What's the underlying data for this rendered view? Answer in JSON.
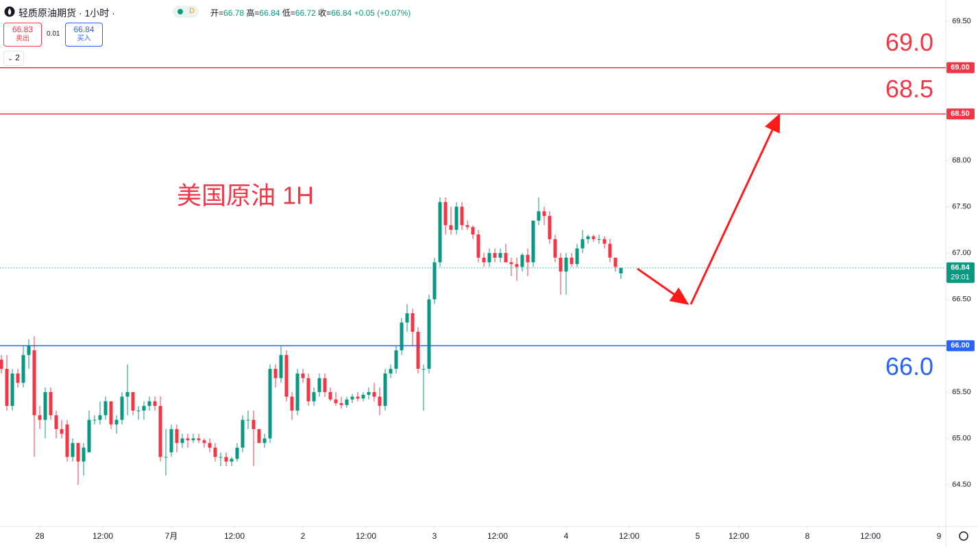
{
  "header": {
    "title": "轻质原油期货 · 1小时 ·",
    "badge": "D",
    "open_label": "开=",
    "open": "66.78",
    "high_label": "高=",
    "high": "66.84",
    "low_label": "低=",
    "low": "66.72",
    "close_label": "收=",
    "close": "66.84",
    "change": "+0.05 (+0.07%)",
    "bid": "66.83",
    "bid_label": "卖出",
    "spread": "0.01",
    "ask": "66.84",
    "ask_label": "买入",
    "layers": "2"
  },
  "chart_data": {
    "type": "candlestick",
    "up_color": "#089981",
    "down_color": "#f23645",
    "annotation": "美国原油 1H",
    "open": [
      65.85,
      65.75,
      65.35,
      65.7,
      65.6,
      65.9,
      65.95,
      65.25,
      65.2,
      65.5,
      65.25,
      65.1,
      65.15,
      64.8,
      64.95,
      64.75,
      64.85,
      65.2,
      65.2,
      65.25,
      65.4,
      65.15,
      65.2,
      65.45,
      65.5,
      65.3,
      65.3,
      65.35,
      65.4,
      65.35,
      64.8,
      64.85,
      65.1,
      64.95,
      65.0,
      64.98,
      65.0,
      64.98,
      64.95,
      64.9,
      64.8,
      64.8,
      64.75,
      64.78,
      64.9,
      65.2,
      65.2,
      65.1,
      64.95,
      65.0,
      65.75,
      65.65,
      65.9,
      65.45,
      65.3,
      65.7,
      65.65,
      65.4,
      65.5,
      65.65,
      65.5,
      65.42,
      65.38,
      65.36,
      65.42,
      65.45,
      65.43,
      65.47,
      65.5,
      65.45,
      65.35,
      65.7,
      65.75,
      65.95,
      66.25,
      66.35,
      66.15,
      65.75,
      65.75,
      66.5,
      66.9,
      67.55,
      67.3,
      67.25,
      67.5,
      67.3,
      67.28,
      67.2,
      66.95,
      66.9,
      67.0,
      66.95,
      67.0,
      66.9,
      66.88,
      66.85,
      66.98,
      66.9,
      67.35,
      67.45,
      67.4,
      67.15,
      66.95,
      66.8,
      66.95,
      66.88,
      67.05,
      67.15,
      67.18,
      67.15,
      67.15,
      67.1,
      66.95,
      66.78
    ],
    "high": [
      65.9,
      65.9,
      65.75,
      65.75,
      66.0,
      66.07,
      66.1,
      65.35,
      65.55,
      65.55,
      65.3,
      65.2,
      65.2,
      65.0,
      64.95,
      64.95,
      65.3,
      65.25,
      65.4,
      65.45,
      65.4,
      65.25,
      65.5,
      65.8,
      65.5,
      65.35,
      65.4,
      65.45,
      65.45,
      65.45,
      65.1,
      65.15,
      65.15,
      65.05,
      65.05,
      65.05,
      65.05,
      65.0,
      65.0,
      64.95,
      64.85,
      64.85,
      64.8,
      64.95,
      65.25,
      65.3,
      65.3,
      65.1,
      65.05,
      65.8,
      65.8,
      66.0,
      65.95,
      65.5,
      65.75,
      65.75,
      65.7,
      65.55,
      65.7,
      65.7,
      65.55,
      65.5,
      65.45,
      65.45,
      65.48,
      65.5,
      65.5,
      65.55,
      65.6,
      65.55,
      65.75,
      65.8,
      66.0,
      66.3,
      66.45,
      66.4,
      66.2,
      65.8,
      66.55,
      66.95,
      67.6,
      67.6,
      67.5,
      67.55,
      67.55,
      67.35,
      67.3,
      67.25,
      67.0,
      67.05,
      67.05,
      67.05,
      67.1,
      66.95,
      66.95,
      67.0,
      67.05,
      67.35,
      67.6,
      67.5,
      67.45,
      67.2,
      67.0,
      67.0,
      67.0,
      67.1,
      67.25,
      67.2,
      67.2,
      67.2,
      67.18,
      67.15,
      66.95,
      66.84
    ],
    "low": [
      65.7,
      65.3,
      65.3,
      65.55,
      65.55,
      65.75,
      64.8,
      65.1,
      65.0,
      65.2,
      65.0,
      65.0,
      64.75,
      64.75,
      64.5,
      64.6,
      64.85,
      65.15,
      65.15,
      65.2,
      65.1,
      65.05,
      65.15,
      65.25,
      65.25,
      65.2,
      65.2,
      65.3,
      65.3,
      64.75,
      64.6,
      64.8,
      64.85,
      64.9,
      64.9,
      64.95,
      64.95,
      64.9,
      64.85,
      64.75,
      64.7,
      64.7,
      64.7,
      64.75,
      64.85,
      65.1,
      64.7,
      64.95,
      64.9,
      64.95,
      65.55,
      65.6,
      65.4,
      65.2,
      65.25,
      65.6,
      65.35,
      65.35,
      65.45,
      65.45,
      65.4,
      65.35,
      65.32,
      65.33,
      65.38,
      65.4,
      65.4,
      65.42,
      65.4,
      65.25,
      65.3,
      65.65,
      65.7,
      65.9,
      66.15,
      66.0,
      65.7,
      65.3,
      65.7,
      66.45,
      66.85,
      67.2,
      67.2,
      67.2,
      67.25,
      67.25,
      67.15,
      66.9,
      66.85,
      66.85,
      66.9,
      66.9,
      66.9,
      66.75,
      66.7,
      66.8,
      66.75,
      66.85,
      67.3,
      67.3,
      67.1,
      66.9,
      66.55,
      66.55,
      66.85,
      66.85,
      67.0,
      67.1,
      67.12,
      67.1,
      67.05,
      66.9,
      66.8,
      66.72
    ],
    "close": [
      65.75,
      65.35,
      65.7,
      65.6,
      65.9,
      66.0,
      65.25,
      65.2,
      65.5,
      65.25,
      65.1,
      65.05,
      64.8,
      64.95,
      64.75,
      64.9,
      65.2,
      65.2,
      65.25,
      65.4,
      65.15,
      65.2,
      65.45,
      65.5,
      65.3,
      65.3,
      65.35,
      65.4,
      65.35,
      64.8,
      64.8,
      65.1,
      64.95,
      65.0,
      64.98,
      65.0,
      64.98,
      64.95,
      64.9,
      64.8,
      64.8,
      64.75,
      64.78,
      64.9,
      65.2,
      65.2,
      65.1,
      64.95,
      65.0,
      65.75,
      65.65,
      65.9,
      65.45,
      65.3,
      65.7,
      65.65,
      65.4,
      65.5,
      65.65,
      65.5,
      65.42,
      65.38,
      65.36,
      65.42,
      65.45,
      65.43,
      65.47,
      65.5,
      65.45,
      65.35,
      65.7,
      65.75,
      65.95,
      66.25,
      66.35,
      66.15,
      65.75,
      65.75,
      66.5,
      66.9,
      67.55,
      67.3,
      67.25,
      67.5,
      67.3,
      67.28,
      67.2,
      66.95,
      66.9,
      67.0,
      66.95,
      67.0,
      66.9,
      66.88,
      66.85,
      66.98,
      66.9,
      67.35,
      67.45,
      67.4,
      67.15,
      66.95,
      66.8,
      66.95,
      66.88,
      67.05,
      67.15,
      67.18,
      67.15,
      67.15,
      67.1,
      66.95,
      66.85,
      66.84
    ],
    "xlim": [
      -0.25,
      172.25
    ],
    "ylim": [
      64.05,
      69.73
    ],
    "xticks": [
      {
        "value": 7,
        "label": "28"
      },
      {
        "value": 18.5,
        "label": "12:00"
      },
      {
        "value": 31,
        "label": "7月"
      },
      {
        "value": 42.5,
        "label": "12:00"
      },
      {
        "value": 55,
        "label": "2"
      },
      {
        "value": 66.5,
        "label": "12:00"
      },
      {
        "value": 79,
        "label": "3"
      },
      {
        "value": 90.5,
        "label": "12:00"
      },
      {
        "value": 103,
        "label": "4"
      },
      {
        "value": 114.5,
        "label": "12:00"
      },
      {
        "value": 127,
        "label": "5"
      },
      {
        "value": 134.5,
        "label": "12:00"
      },
      {
        "value": 147,
        "label": "8"
      },
      {
        "value": 158.5,
        "label": "12:00"
      },
      {
        "value": 171,
        "label": "9"
      }
    ],
    "yticks": [
      {
        "value": 64.5,
        "label": "64.50"
      },
      {
        "value": 65,
        "label": "65.00"
      },
      {
        "value": 65.5,
        "label": "65.50"
      },
      {
        "value": 66,
        "label": "66.00"
      },
      {
        "value": 66.5,
        "label": "66.50"
      },
      {
        "value": 67,
        "label": "67.00"
      },
      {
        "value": 67.5,
        "label": "67.50"
      },
      {
        "value": 68,
        "label": "68.00"
      },
      {
        "value": 68.5,
        "label": "68.50"
      },
      {
        "value": 69,
        "label": "69.00"
      },
      {
        "value": 69.5,
        "label": "69.50"
      }
    ],
    "levels": [
      {
        "value": 69.0,
        "label": "69.0",
        "axis_label": "69.00",
        "color": "#f23645",
        "label_side": "above"
      },
      {
        "value": 68.5,
        "label": "68.5",
        "axis_label": "68.50",
        "color": "#f23645",
        "label_side": "above"
      },
      {
        "value": 66.0,
        "label": "66.0",
        "axis_label": "66.00",
        "color": "#2962ff",
        "label_side": "below"
      }
    ],
    "last_price": {
      "value": 66.84,
      "label": "66.84",
      "countdown": "29:01",
      "color": "#089981"
    }
  }
}
